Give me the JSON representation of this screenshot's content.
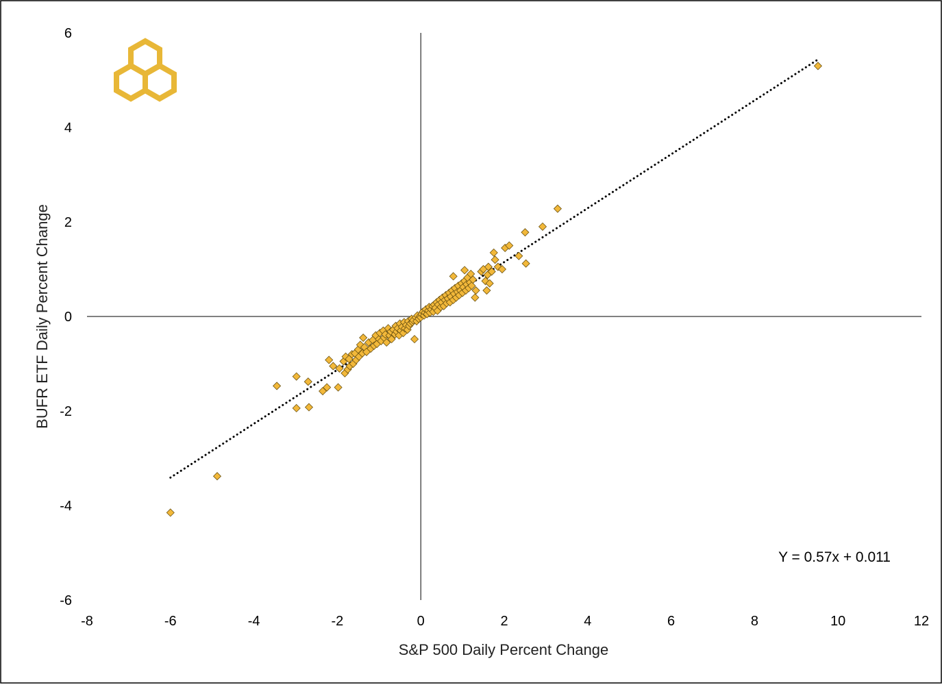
{
  "chart_data": {
    "type": "scatter",
    "title": "",
    "xlabel": "S&P 500 Daily Percent Change",
    "ylabel": "BUFR ETF Daily Percent Change",
    "xlim": [
      -8,
      12
    ],
    "ylim": [
      -6,
      6
    ],
    "xticks": [
      "-8",
      "-6",
      "-4",
      "-2",
      "0",
      "2",
      "4",
      "6",
      "8",
      "10",
      "12"
    ],
    "yticks": [
      "-6",
      "-4",
      "-2",
      "0",
      "2",
      "4",
      "6"
    ],
    "grid": false,
    "legend": "none",
    "annotation": "Y = 0.57x + 0.011",
    "trendline": {
      "slope": 0.57,
      "intercept": 0.011,
      "x_range": [
        -6,
        9.5
      ],
      "style": "dotted"
    },
    "marker": {
      "shape": "diamond",
      "fill": "#F2B83A",
      "stroke": "#6B5212"
    },
    "logo_color": "#E8B737",
    "series": [
      {
        "points": [
          [
            -6.0,
            -4.15
          ],
          [
            -4.88,
            -3.38
          ],
          [
            -3.45,
            -1.47
          ],
          [
            -2.98,
            -1.27
          ],
          [
            -2.98,
            -1.94
          ],
          [
            -2.68,
            -1.92
          ],
          [
            -2.7,
            -1.38
          ],
          [
            -2.35,
            -1.58
          ],
          [
            -2.25,
            -1.5
          ],
          [
            -2.2,
            -0.92
          ],
          [
            -2.1,
            -1.05
          ],
          [
            -1.98,
            -1.5
          ],
          [
            -1.95,
            -1.1
          ],
          [
            -1.85,
            -0.95
          ],
          [
            -1.82,
            -1.2
          ],
          [
            -1.8,
            -0.85
          ],
          [
            -1.75,
            -1.12
          ],
          [
            -1.72,
            -0.9
          ],
          [
            -1.7,
            -1.05
          ],
          [
            -1.65,
            -0.8
          ],
          [
            -1.62,
            -1.0
          ],
          [
            -1.58,
            -0.78
          ],
          [
            -1.55,
            -0.92
          ],
          [
            -1.5,
            -0.7
          ],
          [
            -1.48,
            -0.85
          ],
          [
            -1.45,
            -0.6
          ],
          [
            -1.4,
            -0.78
          ],
          [
            -1.38,
            -0.45
          ],
          [
            -1.35,
            -0.65
          ],
          [
            -1.3,
            -0.75
          ],
          [
            -1.25,
            -0.55
          ],
          [
            -1.2,
            -0.68
          ],
          [
            -1.15,
            -0.5
          ],
          [
            -1.12,
            -0.62
          ],
          [
            -1.08,
            -0.4
          ],
          [
            -1.05,
            -0.58
          ],
          [
            -1.0,
            -0.48
          ],
          [
            -0.98,
            -0.35
          ],
          [
            -0.95,
            -0.52
          ],
          [
            -0.9,
            -0.3
          ],
          [
            -0.88,
            -0.45
          ],
          [
            -0.85,
            -0.38
          ],
          [
            -0.82,
            -0.55
          ],
          [
            -0.78,
            -0.25
          ],
          [
            -0.75,
            -0.4
          ],
          [
            -0.72,
            -0.32
          ],
          [
            -0.7,
            -0.48
          ],
          [
            -0.66,
            -0.28
          ],
          [
            -0.62,
            -0.38
          ],
          [
            -0.6,
            -0.2
          ],
          [
            -0.58,
            -0.32
          ],
          [
            -0.55,
            -0.25
          ],
          [
            -0.52,
            -0.4
          ],
          [
            -0.5,
            -0.15
          ],
          [
            -0.48,
            -0.3
          ],
          [
            -0.45,
            -0.22
          ],
          [
            -0.42,
            -0.35
          ],
          [
            -0.4,
            -0.12
          ],
          [
            -0.38,
            -0.25
          ],
          [
            -0.35,
            -0.18
          ],
          [
            -0.32,
            -0.28
          ],
          [
            -0.3,
            -0.1
          ],
          [
            -0.28,
            -0.2
          ],
          [
            -0.25,
            -0.15
          ],
          [
            -0.22,
            -0.05
          ],
          [
            -0.2,
            -0.12
          ],
          [
            -0.18,
            -0.08
          ],
          [
            -0.15,
            -0.48
          ],
          [
            -0.12,
            -0.02
          ],
          [
            -0.1,
            -0.1
          ],
          [
            -0.08,
            0.02
          ],
          [
            -0.05,
            -0.05
          ],
          [
            -0.02,
            0.0
          ],
          [
            0.0,
            -0.02
          ],
          [
            0.02,
            0.05
          ],
          [
            0.05,
            0.1
          ],
          [
            0.08,
            0.02
          ],
          [
            0.1,
            0.08
          ],
          [
            0.12,
            0.15
          ],
          [
            0.15,
            0.05
          ],
          [
            0.18,
            0.12
          ],
          [
            0.2,
            0.2
          ],
          [
            0.22,
            0.08
          ],
          [
            0.25,
            0.15
          ],
          [
            0.28,
            0.22
          ],
          [
            0.3,
            0.1
          ],
          [
            0.32,
            0.25
          ],
          [
            0.35,
            0.18
          ],
          [
            0.38,
            0.3
          ],
          [
            0.4,
            0.12
          ],
          [
            0.42,
            0.25
          ],
          [
            0.45,
            0.35
          ],
          [
            0.48,
            0.2
          ],
          [
            0.5,
            0.3
          ],
          [
            0.52,
            0.4
          ],
          [
            0.55,
            0.22
          ],
          [
            0.58,
            0.35
          ],
          [
            0.6,
            0.45
          ],
          [
            0.62,
            0.28
          ],
          [
            0.65,
            0.38
          ],
          [
            0.68,
            0.5
          ],
          [
            0.7,
            0.3
          ],
          [
            0.72,
            0.42
          ],
          [
            0.75,
            0.55
          ],
          [
            0.78,
            0.35
          ],
          [
            0.8,
            0.48
          ],
          [
            0.82,
            0.6
          ],
          [
            0.78,
            0.85
          ],
          [
            0.85,
            0.4
          ],
          [
            0.88,
            0.52
          ],
          [
            0.9,
            0.65
          ],
          [
            0.92,
            0.45
          ],
          [
            0.95,
            0.55
          ],
          [
            0.98,
            0.7
          ],
          [
            1.0,
            0.5
          ],
          [
            1.02,
            0.62
          ],
          [
            1.05,
            0.75
          ],
          [
            1.05,
            0.98
          ],
          [
            1.08,
            0.55
          ],
          [
            1.1,
            0.68
          ],
          [
            1.12,
            0.82
          ],
          [
            1.15,
            0.6
          ],
          [
            1.18,
            0.72
          ],
          [
            1.2,
            0.9
          ],
          [
            1.22,
            0.65
          ],
          [
            1.25,
            0.78
          ],
          [
            1.3,
            0.4
          ],
          [
            1.32,
            0.55
          ],
          [
            1.45,
            0.95
          ],
          [
            1.5,
            1.0
          ],
          [
            1.55,
            0.75
          ],
          [
            1.58,
            0.55
          ],
          [
            1.6,
            0.88
          ],
          [
            1.62,
            1.05
          ],
          [
            1.65,
            0.7
          ],
          [
            1.7,
            0.95
          ],
          [
            1.75,
            1.35
          ],
          [
            1.78,
            1.2
          ],
          [
            1.85,
            1.05
          ],
          [
            1.95,
            1.0
          ],
          [
            2.02,
            1.45
          ],
          [
            2.12,
            1.5
          ],
          [
            2.35,
            1.28
          ],
          [
            2.5,
            1.78
          ],
          [
            2.52,
            1.12
          ],
          [
            2.92,
            1.9
          ],
          [
            3.28,
            2.28
          ],
          [
            9.52,
            5.3
          ]
        ]
      }
    ]
  }
}
